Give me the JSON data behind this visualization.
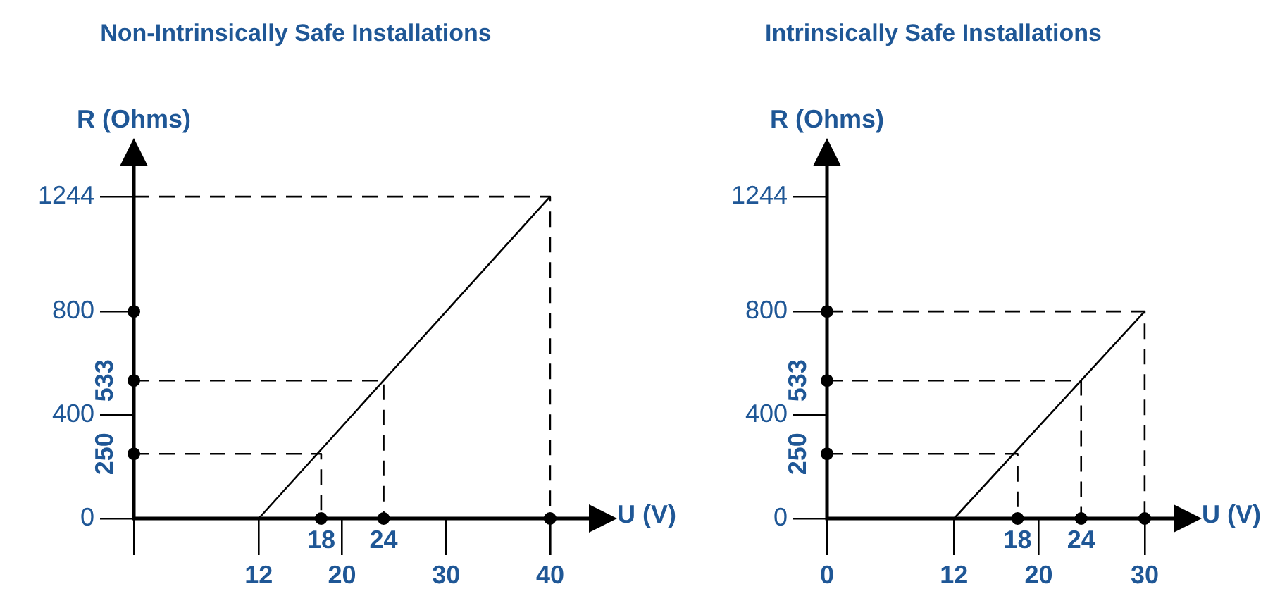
{
  "chart_data": [
    {
      "type": "line",
      "title": "Non-Intrinsically Safe Installations",
      "xlabel": "U (V)",
      "ylabel": "R (Ohms)",
      "xlim": [
        0,
        44
      ],
      "xticks": [
        {
          "value": 0,
          "label": null
        },
        12,
        20,
        30,
        40
      ],
      "ylim": [
        0,
        1370
      ],
      "yticks": [
        0,
        400,
        800,
        1244
      ],
      "series": [
        {
          "x": [
            12,
            40
          ],
          "values": [
            0,
            1244
          ],
          "color": "#000000",
          "line_style": "solid"
        },
        {
          "x": [
            0,
            40,
            40
          ],
          "values": [
            1244,
            1244,
            0
          ],
          "color": "#000000",
          "line_style": "dashed"
        },
        {
          "x": [
            0,
            24,
            24
          ],
          "values": [
            533,
            533,
            0
          ],
          "color": "#000000",
          "line_style": "dashed"
        },
        {
          "x": [
            0,
            18,
            18
          ],
          "values": [
            250,
            250,
            0
          ],
          "color": "#000000",
          "line_style": "dashed"
        },
        {
          "type": "scatter",
          "x": [
            0,
            0,
            0,
            18,
            24,
            40
          ],
          "values": [
            250,
            533,
            800,
            0,
            0,
            0
          ],
          "color": "#000000",
          "marker": "circle"
        }
      ],
      "annotations": [
        {
          "text": "18",
          "x": 18,
          "y": 0
        },
        {
          "text": "24",
          "x": 24,
          "y": 0
        },
        {
          "text": "250",
          "x": 0,
          "y": 250
        },
        {
          "text": "533",
          "x": 0,
          "y": 533
        }
      ]
    },
    {
      "type": "line",
      "title": "Intrinsically Safe Installations",
      "xlabel": "U (V)",
      "ylabel": "R (Ohms)",
      "xlim": [
        0,
        33
      ],
      "xticks": [
        0,
        12,
        20,
        30
      ],
      "ylim": [
        0,
        1370
      ],
      "yticks": [
        0,
        400,
        800,
        1244
      ],
      "series": [
        {
          "x": [
            12,
            30
          ],
          "values": [
            0,
            800
          ],
          "color": "#000000",
          "line_style": "solid"
        },
        {
          "x": [
            0,
            30,
            30
          ],
          "values": [
            800,
            800,
            0
          ],
          "color": "#000000",
          "line_style": "dashed"
        },
        {
          "x": [
            0,
            24,
            24
          ],
          "values": [
            533,
            533,
            0
          ],
          "color": "#000000",
          "line_style": "dashed"
        },
        {
          "x": [
            0,
            18,
            18
          ],
          "values": [
            250,
            250,
            0
          ],
          "color": "#000000",
          "line_style": "dashed"
        },
        {
          "type": "scatter",
          "x": [
            0,
            0,
            0,
            18,
            24,
            30
          ],
          "values": [
            250,
            533,
            800,
            0,
            0,
            0
          ],
          "color": "#000000",
          "marker": "circle"
        }
      ],
      "annotations": [
        {
          "text": "18",
          "x": 18,
          "y": 0
        },
        {
          "text": "24",
          "x": 24,
          "y": 0
        },
        {
          "text": "250",
          "x": 0,
          "y": 250
        },
        {
          "text": "533",
          "x": 0,
          "y": 533
        }
      ]
    }
  ]
}
